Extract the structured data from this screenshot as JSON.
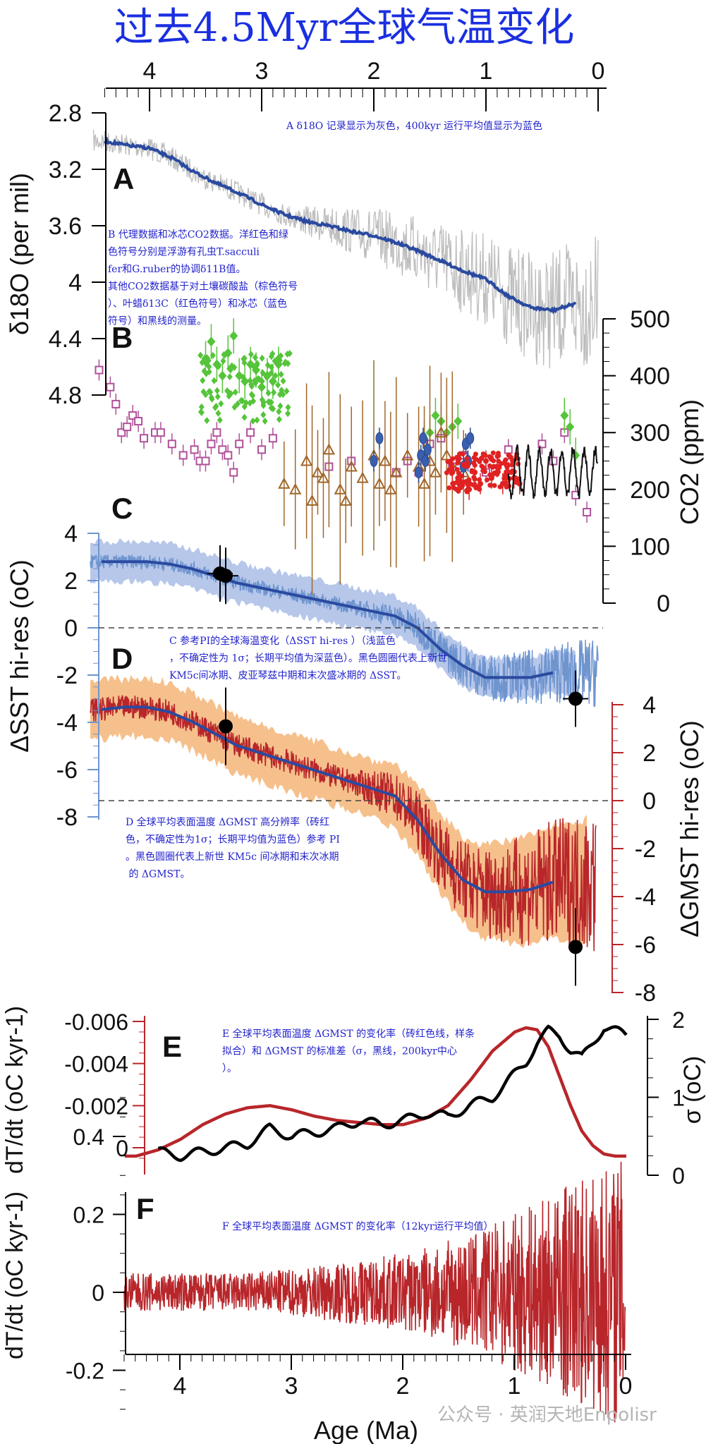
{
  "title": "过去4.5Myr全球气温变化",
  "panel_letters": {
    "a": "A",
    "b": "B",
    "c": "C",
    "d": "D",
    "e": "E",
    "f": "F"
  },
  "watermark": "公众号 · 英润天地Enpolisr",
  "colors": {
    "title": "#1a2fe0",
    "gray": "#bdbdbd",
    "blue_dark": "#2a4aa0",
    "blue_light": "#6f95cf",
    "blue_band": "#b7c7ea",
    "red": "#b8262a",
    "orange_band": "#f6c08c",
    "brown": "#a0662a",
    "magenta": "#b0509a",
    "green": "#55c43a",
    "note": "#2222cc"
  },
  "chart_data": [
    {
      "panel": "A",
      "type": "line",
      "ylabel": "δ18O (per mil)",
      "yticks": [
        "2.8",
        "3.2",
        "3.6",
        "4",
        "4.4",
        "4.8"
      ],
      "ylim": [
        2.8,
        4.8
      ],
      "y_inverted": true,
      "top_axis_ticks": [
        "4",
        "3",
        "2",
        "1",
        "0"
      ],
      "xlim": [
        4.5,
        0
      ],
      "note": "A δ18O 记录显示为灰色，400kyr 运行平均值显示为蓝色",
      "series": [
        {
          "style": "running-mean",
          "x": [
            4.4,
            4.2,
            4.0,
            3.8,
            3.6,
            3.4,
            3.2,
            3.0,
            2.8,
            2.6,
            2.4,
            2.2,
            2.0,
            1.8,
            1.6,
            1.4,
            1.2,
            1.0,
            0.8,
            0.6,
            0.4,
            0.2
          ],
          "values": [
            3.0,
            3.03,
            3.05,
            3.12,
            3.22,
            3.3,
            3.37,
            3.45,
            3.52,
            3.57,
            3.6,
            3.64,
            3.67,
            3.72,
            3.78,
            3.85,
            3.92,
            3.98,
            4.1,
            4.18,
            4.2,
            4.15
          ]
        }
      ]
    },
    {
      "panel": "B",
      "type": "scatter",
      "ylabel": "CO2 (ppm)",
      "yticks": [
        "0",
        "100",
        "200",
        "300",
        "400",
        "500"
      ],
      "ylim": [
        0,
        500
      ],
      "xlim": [
        4.5,
        0
      ],
      "note": "B 代理数据和冰芯CO2数据。洋红色和绿色符号分别是浮游有孔虫T.sacculifer和G.ruber的协调δ11B值。其他CO2数据基于对土壤碳酸盐（棕色符号）、叶蜡δ13C（红色符号）和冰芯（蓝色符号）和黑线的测量。",
      "series": [
        {
          "name": "T. sacculifer δ11B",
          "x": [
            4.45,
            4.35,
            4.3,
            4.25,
            4.2,
            4.15,
            4.1,
            4.05,
            3.95,
            3.9,
            3.8,
            3.7,
            3.6,
            3.55,
            3.5,
            3.45,
            3.4,
            3.35,
            3.3,
            3.25,
            3.2,
            3.1,
            3.0,
            2.9,
            2.4,
            2.2,
            1.8,
            1.7,
            1.6,
            1.5,
            1.4,
            1.3,
            1.2,
            1.0,
            0.8,
            0.5,
            0.4,
            0.3,
            0.2,
            0.1
          ],
          "values": [
            410,
            380,
            350,
            300,
            310,
            330,
            320,
            290,
            300,
            300,
            280,
            260,
            270,
            250,
            250,
            280,
            300,
            270,
            260,
            230,
            280,
            300,
            270,
            290,
            240,
            250,
            230,
            250,
            230,
            280,
            290,
            240,
            260,
            230,
            270,
            280,
            250,
            300,
            190,
            160
          ]
        },
        {
          "name": "G. ruber δ11B",
          "x": [
            3.5,
            3.45,
            3.4,
            3.35,
            3.3,
            3.25,
            3.2,
            3.15,
            3.1,
            3.05,
            3.0,
            2.95,
            2.9,
            2.85,
            1.55,
            1.5,
            1.45,
            1.4,
            1.35,
            1.3,
            1.25,
            0.3,
            0.25,
            0.2
          ],
          "values": [
            430,
            460,
            420,
            400,
            440,
            470,
            400,
            390,
            420,
            410,
            380,
            400,
            390,
            420,
            290,
            300,
            330,
            320,
            300,
            310,
            320,
            330,
            310,
            260
          ]
        },
        {
          "name": "土壤碳酸盐",
          "x": [
            2.8,
            2.7,
            2.6,
            2.55,
            2.5,
            2.45,
            2.4,
            2.3,
            2.25,
            2.2,
            2.1,
            2.0,
            1.95,
            1.9,
            1.85,
            1.8,
            1.7,
            1.6,
            1.55,
            1.5,
            1.45,
            1.4,
            1.35,
            1.3,
            1.2
          ],
          "values": [
            210,
            200,
            250,
            180,
            230,
            220,
            270,
            200,
            180,
            240,
            220,
            260,
            210,
            250,
            200,
            230,
            260,
            240,
            210,
            250,
            230,
            300,
            260,
            240,
            230
          ]
        },
        {
          "name": "叶蜡δ13C",
          "x": [
            1.3,
            1.25,
            1.2,
            1.15,
            1.1,
            1.05,
            1.0,
            0.95,
            0.9,
            0.85,
            0.8,
            0.75,
            0.7
          ],
          "values": [
            230,
            220,
            240,
            200,
            230,
            210,
            250,
            220,
            240,
            210,
            230,
            220,
            210
          ]
        },
        {
          "name": "冰芯",
          "x": [
            2.0,
            1.95,
            1.6,
            1.58,
            1.56,
            1.54,
            1.52,
            1.2,
            1.18,
            1.16,
            1.14
          ],
          "values": [
            250,
            290,
            230,
            260,
            290,
            250,
            270,
            240,
            280,
            250,
            290
          ]
        }
      ]
    },
    {
      "panel": "C",
      "type": "line",
      "ylabel": "ΔSST hi-res (oC)",
      "yticks": [
        "4",
        "2",
        "0",
        "-2",
        "-4",
        "-6",
        "-8"
      ],
      "ylim": [
        -8,
        4
      ],
      "xlim": [
        4.5,
        0
      ],
      "note": "C 参考PI的全球海温变化（ΔSST hi-res ）（浅蓝色，不确定性为 1σ；长期平均值为深蓝色）。黑色圆圈代表上新世 KM5c间冰期、皮亚琴兹中期和末次盛冰期的 ΔSST。",
      "series": [
        {
          "style": "long-term-mean",
          "x": [
            4.4,
            4.2,
            4.0,
            3.8,
            3.6,
            3.4,
            3.2,
            3.0,
            2.8,
            2.6,
            2.4,
            2.2,
            2.0,
            1.8,
            1.6,
            1.4,
            1.2,
            1.0,
            0.8,
            0.6,
            0.4
          ],
          "values": [
            2.8,
            2.8,
            2.8,
            2.7,
            2.5,
            2.2,
            1.9,
            1.7,
            1.5,
            1.3,
            1.1,
            0.9,
            0.7,
            0.5,
            0.0,
            -0.9,
            -1.6,
            -2.1,
            -2.1,
            -2.1,
            -1.9
          ]
        }
      ],
      "points": {
        "x": [
          3.35,
          3.3,
          0.2
        ],
        "values": [
          2.3,
          2.2,
          -3.0
        ]
      }
    },
    {
      "panel": "D",
      "type": "line",
      "ylabel": "ΔGMST hi-res (oC)",
      "yticks": [
        "4",
        "2",
        "0",
        "-2",
        "-4",
        "-6",
        "-8"
      ],
      "ylim": [
        -8,
        4
      ],
      "xlim": [
        4.5,
        0
      ],
      "note": "D 全球平均表面温度 ΔGMST 高分辨率（砖红色，不确定性为1σ；长期平均值为蓝色）参考 PI。黑色圆圈代表上新世 KM5c 间冰期和末次冰期 的 ΔGMST。",
      "series": [
        {
          "style": "long-term-mean",
          "x": [
            4.4,
            4.2,
            4.0,
            3.8,
            3.6,
            3.4,
            3.2,
            3.0,
            2.8,
            2.6,
            2.4,
            2.2,
            2.0,
            1.8,
            1.6,
            1.4,
            1.2,
            1.0,
            0.8,
            0.6,
            0.4
          ],
          "values": [
            3.8,
            3.9,
            3.9,
            3.7,
            3.3,
            2.8,
            2.3,
            2.0,
            1.7,
            1.4,
            1.1,
            0.8,
            0.5,
            0.2,
            -0.8,
            -2.2,
            -3.3,
            -3.8,
            -3.8,
            -3.7,
            -3.4
          ]
        }
      ],
      "points": {
        "x": [
          3.3,
          0.2
        ],
        "values": [
          3.1,
          -6.1
        ]
      }
    },
    {
      "panel": "E",
      "type": "line",
      "ylabel": "dT/dt (oC kyr-1)",
      "ylabel_right": "σ (oC)",
      "yticks": [
        "-0.006",
        "-0.004",
        "-0.002",
        "0"
      ],
      "yticks_right": [
        "0",
        "1",
        "2"
      ],
      "ylim": [
        0.0005,
        -0.006
      ],
      "ylim_right": [
        0,
        2
      ],
      "xlim": [
        4.5,
        0
      ],
      "note": "E 全球平均表面温度 ΔGMST 的变化率（砖红色线，样条拟合）和 ΔGMST 的标准差（σ，黑线，200kyr中心）。",
      "series": [
        {
          "name": "dT/dt",
          "axis": "left",
          "x": [
            4.4,
            4.2,
            4.0,
            3.8,
            3.6,
            3.4,
            3.2,
            3.0,
            2.8,
            2.6,
            2.4,
            2.2,
            2.0,
            1.8,
            1.6,
            1.4,
            1.2,
            1.0,
            0.9,
            0.8,
            0.7,
            0.6,
            0.5,
            0.4,
            0.3,
            0.2,
            0.1,
            0.0
          ],
          "values": [
            0.0004,
            0.0001,
            -0.0004,
            -0.0011,
            -0.0016,
            -0.0019,
            -0.002,
            -0.0018,
            -0.0015,
            -0.0013,
            -0.0012,
            -0.0011,
            -0.0011,
            -0.0014,
            -0.002,
            -0.0032,
            -0.0046,
            -0.0055,
            -0.0057,
            -0.0056,
            -0.0048,
            -0.0034,
            -0.002,
            -0.0008,
            -0.0001,
            0.0003,
            0.0004,
            0.0004
          ]
        },
        {
          "name": "σ",
          "axis": "right",
          "x": [
            4.2,
            4.0,
            3.8,
            3.6,
            3.4,
            3.2,
            3.0,
            2.8,
            2.6,
            2.4,
            2.2,
            2.0,
            1.8,
            1.6,
            1.4,
            1.2,
            1.0,
            0.9,
            0.8,
            0.7,
            0.6,
            0.5,
            0.4,
            0.3,
            0.2,
            0.1,
            0.0
          ],
          "values": [
            0.3,
            0.25,
            0.3,
            0.35,
            0.4,
            0.6,
            0.5,
            0.55,
            0.6,
            0.7,
            0.65,
            0.7,
            0.8,
            0.75,
            0.9,
            1.0,
            1.3,
            1.45,
            1.7,
            1.85,
            1.8,
            1.6,
            1.5,
            1.7,
            1.9,
            1.85,
            1.8
          ]
        }
      ]
    },
    {
      "panel": "F",
      "type": "line",
      "ylabel": "dT/dt (oC kyr-1)",
      "yticks": [
        "0.4",
        "0.2",
        "0",
        "-0.2"
      ],
      "ylim": [
        -0.3,
        0.5
      ],
      "xlim": [
        4.5,
        0
      ],
      "xlabel": "Age (Ma)",
      "xticks": [
        "4",
        "3",
        "2",
        "1",
        "0"
      ],
      "note": "F 全球平均表面温度 ΔGMST 的变化率（12kyr运行平均值）",
      "amplitude_envelope": {
        "x": [
          4.5,
          4.0,
          3.5,
          3.0,
          2.5,
          2.0,
          1.5,
          1.0,
          0.5,
          0.0
        ],
        "values": [
          0.05,
          0.05,
          0.05,
          0.06,
          0.08,
          0.1,
          0.14,
          0.2,
          0.28,
          0.35
        ]
      }
    }
  ]
}
